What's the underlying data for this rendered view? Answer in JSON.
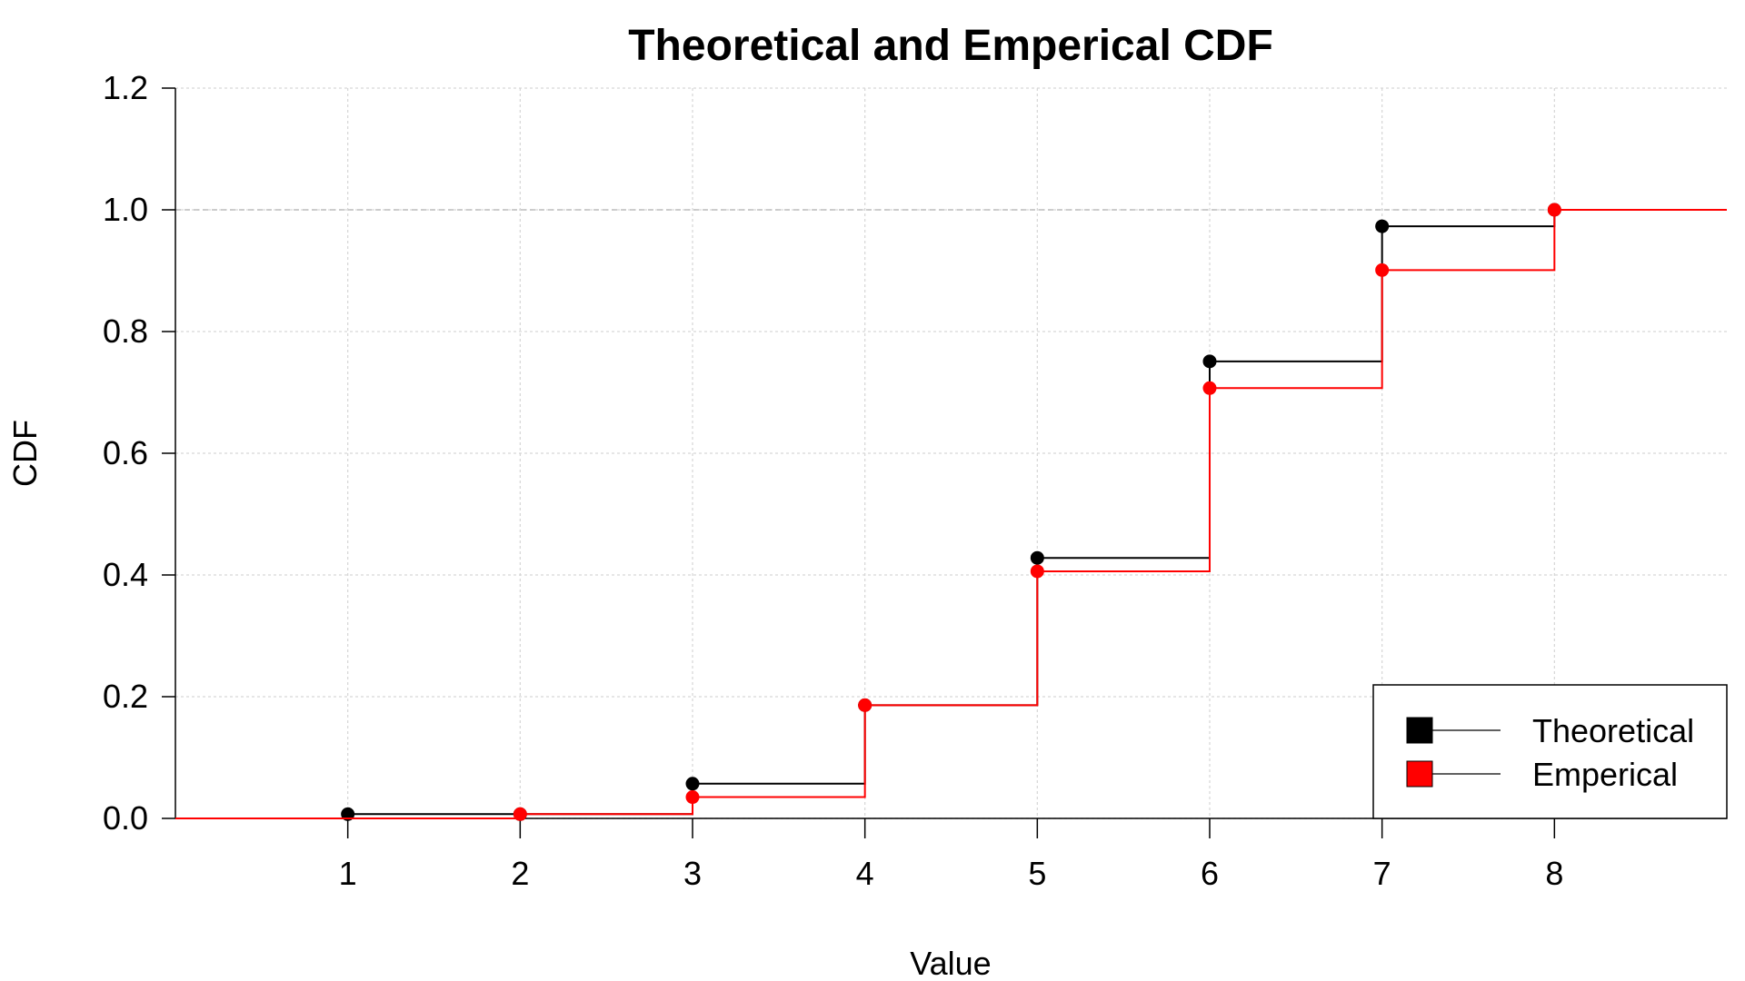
{
  "chart_data": {
    "type": "line",
    "step": true,
    "title": "Theoretical and Emperical CDF",
    "xlabel": "Value",
    "ylabel": "CDF",
    "xlim": [
      0,
      9
    ],
    "ylim": [
      0,
      1.2
    ],
    "x_ticks": [
      "1",
      "2",
      "3",
      "4",
      "5",
      "6",
      "7",
      "8"
    ],
    "y_ticks": [
      "0.0",
      "0.2",
      "0.4",
      "0.6",
      "0.8",
      "1.0",
      "1.2"
    ],
    "grid": true,
    "reference_line_y": 1.0,
    "legend": {
      "position": "bottom-right"
    },
    "series": [
      {
        "name": "Theoretical",
        "color": "#000000",
        "x": [
          1,
          2,
          3,
          4,
          5,
          6,
          7,
          8
        ],
        "y": [
          0.007,
          0.007,
          0.057,
          0.186,
          0.428,
          0.751,
          0.973,
          1.0
        ]
      },
      {
        "name": "Emperical",
        "color": "#ff0000",
        "x": [
          2,
          3,
          4,
          5,
          6,
          7,
          8
        ],
        "y": [
          0.007,
          0.035,
          0.186,
          0.406,
          0.707,
          0.901,
          1.0
        ]
      }
    ]
  }
}
